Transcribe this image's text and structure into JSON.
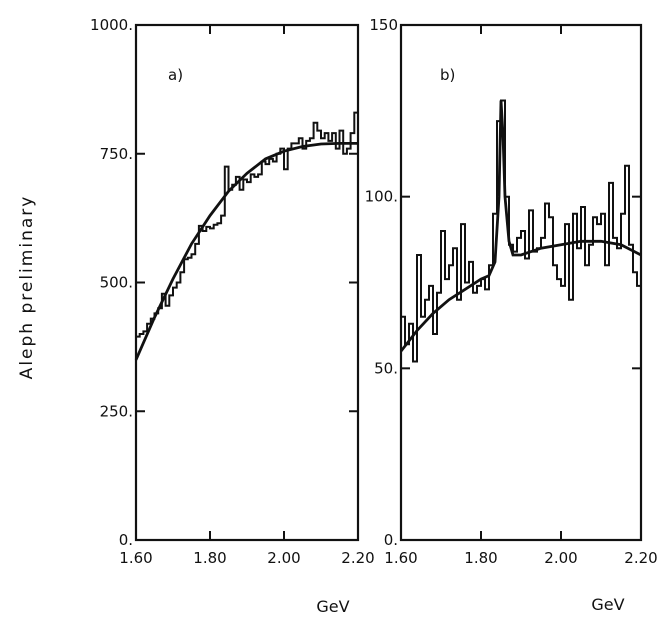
{
  "ylabel": "Aleph   preliminary",
  "chart_data": [
    {
      "type": "line",
      "panel_label": "a)",
      "xlabel": "GeV",
      "xlim": [
        1.6,
        2.2
      ],
      "ylim": [
        0,
        1000
      ],
      "xticks": [
        1.6,
        1.8,
        2.0,
        2.2
      ],
      "xtick_labels": [
        "1.60",
        "1.80",
        "2.00",
        "2.20"
      ],
      "yticks": [
        0,
        250,
        500,
        750,
        1000
      ],
      "ytick_labels": [
        "0.",
        "250.",
        "500.",
        "750.",
        "1000."
      ],
      "series": [
        {
          "kind": "histogram",
          "bin_edges": [
            1.6,
            1.61,
            1.62,
            1.63,
            1.64,
            1.65,
            1.66,
            1.67,
            1.68,
            1.69,
            1.7,
            1.71,
            1.72,
            1.73,
            1.74,
            1.75,
            1.76,
            1.77,
            1.78,
            1.79,
            1.8,
            1.81,
            1.82,
            1.83,
            1.84,
            1.85,
            1.86,
            1.87,
            1.88,
            1.89,
            1.9,
            1.91,
            1.92,
            1.93,
            1.94,
            1.95,
            1.96,
            1.97,
            1.98,
            1.99,
            2.0,
            2.01,
            2.02,
            2.03,
            2.04,
            2.05,
            2.06,
            2.07,
            2.08,
            2.09,
            2.1,
            2.11,
            2.12,
            2.13,
            2.14,
            2.15,
            2.16,
            2.17,
            2.18,
            2.19,
            2.2
          ],
          "values": [
            395,
            400,
            405,
            420,
            430,
            440,
            450,
            478,
            455,
            475,
            490,
            500,
            520,
            545,
            548,
            555,
            575,
            610,
            600,
            608,
            605,
            612,
            615,
            630,
            725,
            680,
            690,
            705,
            680,
            700,
            695,
            710,
            705,
            710,
            735,
            730,
            740,
            735,
            750,
            760,
            720,
            760,
            770,
            770,
            780,
            760,
            775,
            780,
            810,
            795,
            780,
            790,
            775,
            790,
            760,
            795,
            750,
            760,
            790,
            830
          ]
        },
        {
          "kind": "fit",
          "x": [
            1.6,
            1.65,
            1.7,
            1.75,
            1.8,
            1.85,
            1.9,
            1.95,
            2.0,
            2.05,
            2.1,
            2.15,
            2.2
          ],
          "y": [
            350,
            432,
            507,
            575,
            630,
            677,
            712,
            740,
            755,
            764,
            769,
            770,
            770
          ]
        }
      ]
    },
    {
      "type": "line",
      "panel_label": "b)",
      "xlabel": "GeV",
      "xlim": [
        1.6,
        2.2
      ],
      "ylim": [
        0,
        150
      ],
      "xticks": [
        1.6,
        1.8,
        2.0,
        2.2
      ],
      "xtick_labels": [
        "1.60",
        "1.80",
        "2.00",
        "2.20"
      ],
      "yticks": [
        0,
        50,
        100,
        150
      ],
      "ytick_labels": [
        "0.",
        "50.",
        "100.",
        "150"
      ],
      "series": [
        {
          "kind": "histogram",
          "bin_edges": [
            1.6,
            1.61,
            1.62,
            1.63,
            1.64,
            1.65,
            1.66,
            1.67,
            1.68,
            1.69,
            1.7,
            1.71,
            1.72,
            1.73,
            1.74,
            1.75,
            1.76,
            1.77,
            1.78,
            1.79,
            1.8,
            1.81,
            1.82,
            1.83,
            1.84,
            1.85,
            1.86,
            1.87,
            1.88,
            1.89,
            1.9,
            1.91,
            1.92,
            1.93,
            1.94,
            1.95,
            1.96,
            1.97,
            1.98,
            1.99,
            2.0,
            2.01,
            2.02,
            2.03,
            2.04,
            2.05,
            2.06,
            2.07,
            2.08,
            2.09,
            2.1,
            2.11,
            2.12,
            2.13,
            2.14,
            2.15,
            2.16,
            2.17,
            2.18,
            2.19,
            2.2
          ],
          "values": [
            65,
            57,
            63,
            52,
            83,
            65,
            70,
            74,
            60,
            72,
            90,
            76,
            80,
            85,
            70,
            92,
            75,
            81,
            72,
            74,
            76,
            73,
            80,
            95,
            122,
            128,
            100,
            86,
            84,
            88,
            90,
            82,
            96,
            84,
            85,
            88,
            98,
            94,
            80,
            76,
            74,
            92,
            70,
            95,
            85,
            97,
            80,
            86,
            94,
            92,
            95,
            80,
            104,
            88,
            85,
            95,
            109,
            86,
            78,
            74
          ]
        },
        {
          "kind": "fit",
          "x": [
            1.6,
            1.64,
            1.68,
            1.72,
            1.76,
            1.8,
            1.82,
            1.835,
            1.845,
            1.85,
            1.855,
            1.86,
            1.87,
            1.88,
            1.9,
            1.95,
            2.0,
            2.05,
            2.1,
            2.15,
            2.2
          ],
          "y": [
            55,
            61,
            66,
            70,
            73,
            76,
            77,
            81,
            100,
            128,
            118,
            100,
            87,
            83,
            83,
            85,
            86,
            87,
            87,
            86,
            83
          ]
        }
      ]
    }
  ]
}
